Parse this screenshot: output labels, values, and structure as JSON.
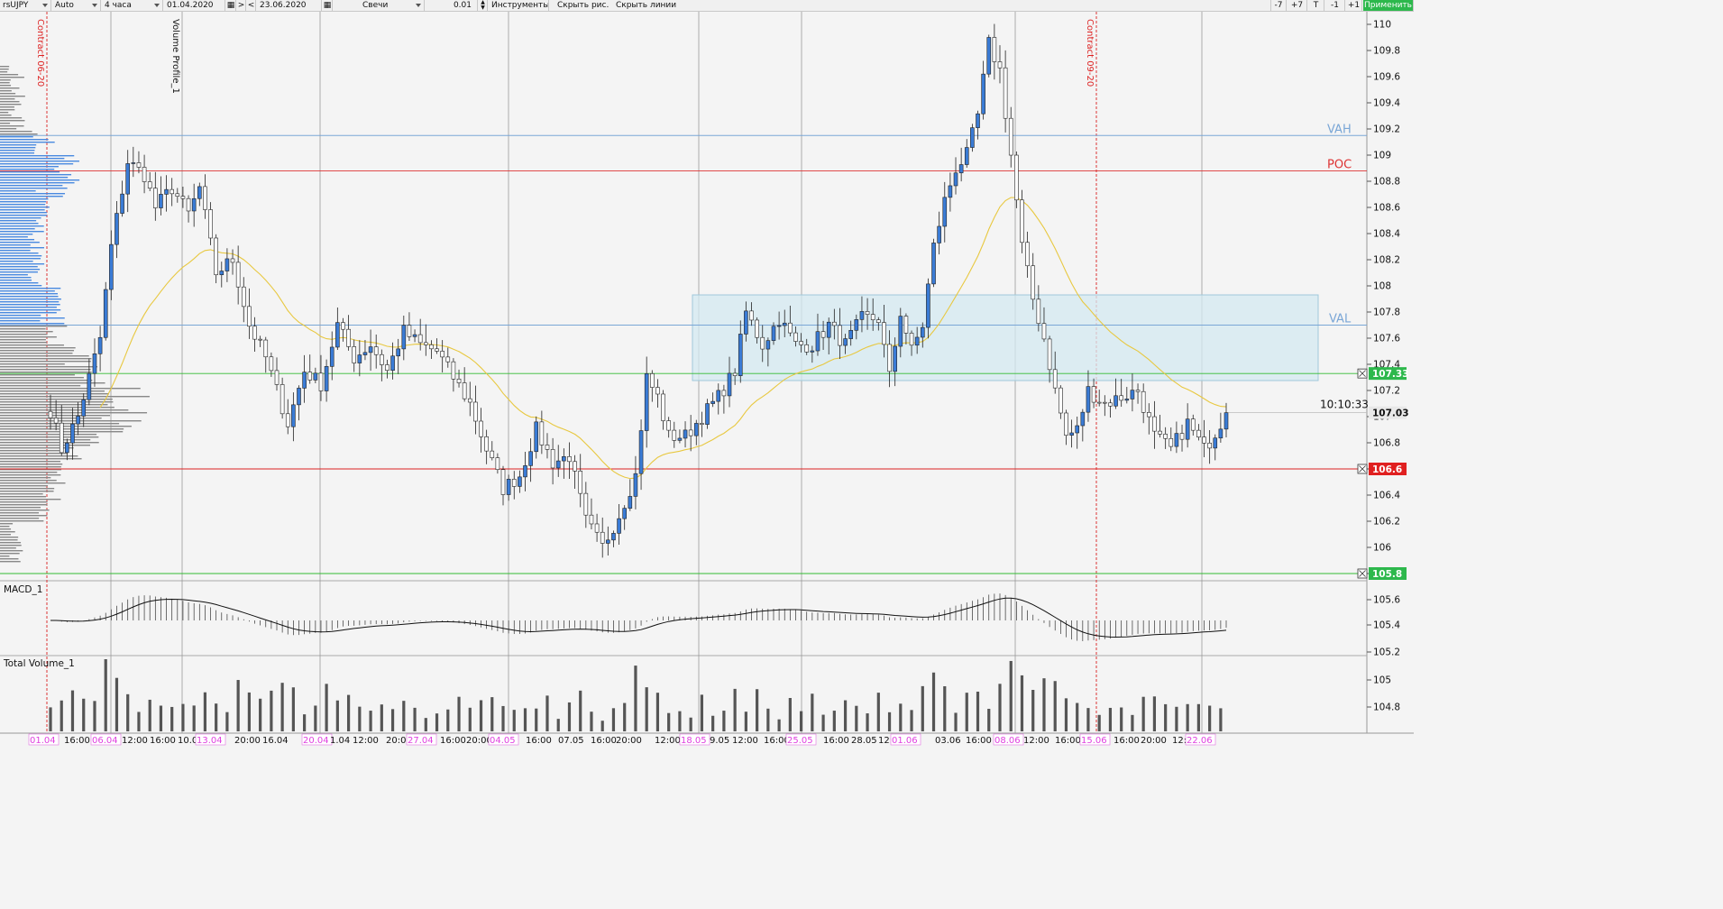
{
  "toolbar": {
    "symbol": "rsUJPY",
    "scale": "Auto",
    "timeframe": "4 часа",
    "date_from": "01.04.2020",
    "nav_next": ">",
    "nav_prev": "<",
    "date_to": "23.06.2020",
    "chart_type": "Свечи",
    "step": "0.01",
    "tools": "Инструменты",
    "hide_drawings": "Скрыть рис.",
    "hide_lines": "Скрыть линии",
    "btn_minus7": "-7",
    "btn_plus7": "+7",
    "btn_t": "T",
    "btn_minus1": "-1",
    "btn_plus1": "+1",
    "apply": "Применить"
  },
  "chart": {
    "volume_profile_label": "Volume Profile_1",
    "contract1_label": "Contract 06-20",
    "contract2_label": "Contract 09-20",
    "vah_label": "VAH",
    "poc_label": "POC",
    "val_label": "VAL",
    "macd_label": "MACD_1",
    "volume_label": "Total Volume_1",
    "clock": "10:10:33",
    "last_price": "107.03",
    "upper_level": "107.33",
    "lower_level": "106.6",
    "bottom_level": "105.8",
    "vah": 109.15,
    "poc": 108.88,
    "val": 107.7,
    "colors": {
      "up": "#3a7bd5",
      "down": "#ffffff",
      "level_green": "#33bb33",
      "level_red": "#dd2222",
      "ma": "#e8c840",
      "zone": "#d4eaf2"
    }
  },
  "chart_data": {
    "type": "candlestick",
    "price_axis": [
      "110",
      "109.8",
      "109.6",
      "109.4",
      "109.2",
      "109",
      "108.8",
      "108.6",
      "108.4",
      "108.2",
      "108",
      "107.8",
      "107.6",
      "107.4",
      "107.2",
      "107",
      "106.8",
      "106.6",
      "106.4",
      "106.2",
      "106",
      "105.8"
    ],
    "macd_axis": [
      "105.6",
      "105.4",
      "105.2"
    ],
    "volume_axis": [
      "105",
      "104.8"
    ],
    "ylim": [
      105.8,
      110.1
    ],
    "time_axis": [
      {
        "label": "01.04",
        "hl": true
      },
      {
        "label": "16:00",
        "hl": false
      },
      {
        "label": "06.04",
        "hl": true
      },
      {
        "label": "12:00",
        "hl": false
      },
      {
        "label": "16:00",
        "hl": false
      },
      {
        "label": "10.0",
        "hl": false
      },
      {
        "label": "13.04",
        "hl": true
      },
      {
        "label": "20:00",
        "hl": false
      },
      {
        "label": "16.04",
        "hl": false
      },
      {
        "label": "20.04",
        "hl": true
      },
      {
        "label": "1.04",
        "hl": false
      },
      {
        "label": "12:00",
        "hl": false
      },
      {
        "label": "20:00",
        "hl": false
      },
      {
        "label": "27.04",
        "hl": true
      },
      {
        "label": "16:00",
        "hl": false
      },
      {
        "label": "20:00",
        "hl": false
      },
      {
        "label": "04.05",
        "hl": true
      },
      {
        "label": "16:00",
        "hl": false
      },
      {
        "label": "07.05",
        "hl": false
      },
      {
        "label": "16:00",
        "hl": false
      },
      {
        "label": "20:00",
        "hl": false
      },
      {
        "label": "12:00",
        "hl": false
      },
      {
        "label": "18.05",
        "hl": true
      },
      {
        "label": "9.05",
        "hl": false
      },
      {
        "label": "12:00",
        "hl": false
      },
      {
        "label": "16:00",
        "hl": false
      },
      {
        "label": "25.05",
        "hl": true
      },
      {
        "label": "16:00",
        "hl": false
      },
      {
        "label": "28.05",
        "hl": false
      },
      {
        "label": "12:00",
        "hl": false
      },
      {
        "label": "01.06",
        "hl": true
      },
      {
        "label": "03.06",
        "hl": false
      },
      {
        "label": "16:00",
        "hl": false
      },
      {
        "label": "08.06",
        "hl": true
      },
      {
        "label": "12:00",
        "hl": false
      },
      {
        "label": "16:00",
        "hl": false
      },
      {
        "label": "15.06",
        "hl": true
      },
      {
        "label": "16:00",
        "hl": false
      },
      {
        "label": "20:00",
        "hl": false
      },
      {
        "label": "12:00",
        "hl": false
      },
      {
        "label": "22.06",
        "hl": true
      }
    ],
    "anchors": [
      [
        0,
        107.05
      ],
      [
        2,
        106.75
      ],
      [
        5,
        107.0
      ],
      [
        9,
        107.6
      ],
      [
        11,
        108.3
      ],
      [
        14,
        108.95
      ],
      [
        17,
        108.85
      ],
      [
        19,
        108.6
      ],
      [
        22,
        108.75
      ],
      [
        25,
        108.55
      ],
      [
        27,
        108.75
      ],
      [
        30,
        108.1
      ],
      [
        33,
        108.2
      ],
      [
        36,
        107.7
      ],
      [
        39,
        107.45
      ],
      [
        43,
        106.95
      ],
      [
        46,
        107.35
      ],
      [
        49,
        107.25
      ],
      [
        52,
        107.7
      ],
      [
        55,
        107.45
      ],
      [
        58,
        107.55
      ],
      [
        61,
        107.35
      ],
      [
        64,
        107.65
      ],
      [
        67,
        107.55
      ],
      [
        70,
        107.5
      ],
      [
        73,
        107.3
      ],
      [
        76,
        107.1
      ],
      [
        79,
        106.75
      ],
      [
        82,
        106.45
      ],
      [
        85,
        106.55
      ],
      [
        88,
        106.9
      ],
      [
        91,
        106.65
      ],
      [
        94,
        106.7
      ],
      [
        97,
        106.2
      ],
      [
        100,
        106.0
      ],
      [
        103,
        106.25
      ],
      [
        106,
        106.55
      ],
      [
        108,
        107.3
      ],
      [
        110,
        107.15
      ],
      [
        112,
        106.85
      ],
      [
        115,
        106.85
      ],
      [
        118,
        107.0
      ],
      [
        121,
        107.15
      ],
      [
        124,
        107.35
      ],
      [
        126,
        107.8
      ],
      [
        129,
        107.55
      ],
      [
        132,
        107.75
      ],
      [
        135,
        107.55
      ],
      [
        138,
        107.55
      ],
      [
        141,
        107.7
      ],
      [
        144,
        107.55
      ],
      [
        147,
        107.75
      ],
      [
        150,
        107.75
      ],
      [
        152,
        107.3
      ],
      [
        154,
        107.8
      ],
      [
        156,
        107.5
      ],
      [
        158,
        107.7
      ],
      [
        160,
        108.3
      ],
      [
        162,
        108.65
      ],
      [
        164,
        108.9
      ],
      [
        166,
        109.0
      ],
      [
        168,
        109.3
      ],
      [
        170,
        109.85
      ],
      [
        172,
        109.65
      ],
      [
        174,
        109.0
      ],
      [
        176,
        108.3
      ],
      [
        178,
        107.9
      ],
      [
        180,
        107.6
      ],
      [
        182,
        107.2
      ],
      [
        184,
        106.85
      ],
      [
        186,
        106.9
      ],
      [
        188,
        107.2
      ],
      [
        191,
        107.1
      ],
      [
        194,
        107.15
      ],
      [
        197,
        107.2
      ],
      [
        200,
        106.85
      ],
      [
        203,
        106.75
      ],
      [
        206,
        106.95
      ],
      [
        209,
        106.75
      ],
      [
        211,
        106.88
      ],
      [
        213,
        107.03
      ]
    ],
    "n_candles": 214,
    "macd_series": "oscillator (histogram + signal line)",
    "volume_series": "bars"
  }
}
